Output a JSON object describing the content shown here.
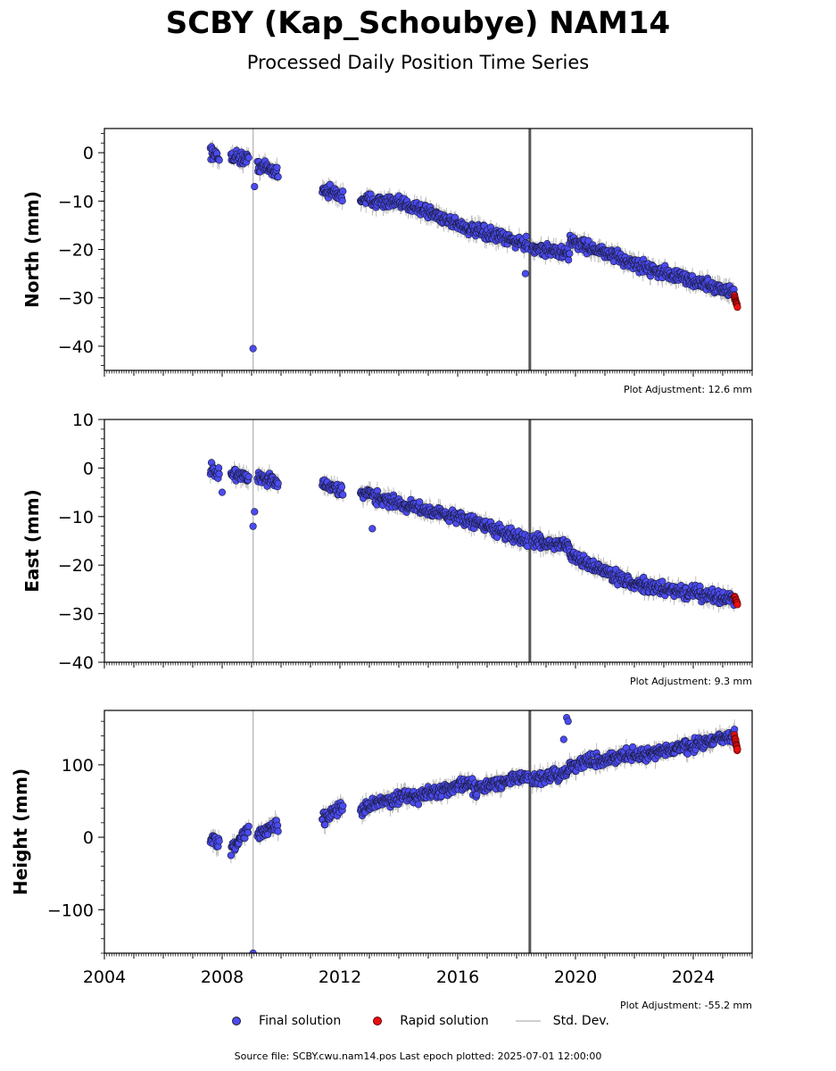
{
  "title": "SCBY (Kap_Schoubye) NAM14",
  "subtitle": "Processed Daily Position Time Series",
  "legend": {
    "final_label": "Final solution",
    "rapid_label": "Rapid solution",
    "std_label": "Std. Dev."
  },
  "source_text": "Source file: SCBY.cwu.nam14.pos  Last epoch plotted: 2025-07-01 12:00:00",
  "colors": {
    "final": "#4b4bf0",
    "rapid": "#e81010",
    "std": "#bdbdbd",
    "offset_line": "#555555"
  },
  "chart_data": [
    {
      "type": "scatter",
      "ylabel": "North (mm)",
      "adjustment_text": "Plot Adjustment: 12.6 mm",
      "ylim": [
        -45,
        5
      ],
      "yticks": [
        0,
        -10,
        -20,
        -30,
        -40
      ],
      "xlim": [
        2004,
        2026
      ],
      "offset_line_x": 2018.45,
      "series": [
        {
          "role": "final",
          "segments": [
            {
              "x": [
                2007.6,
                2007.9
              ],
              "y": [
                0.5,
                -1.5
              ]
            },
            {
              "x": [
                2008.3,
                2008.9
              ],
              "y": [
                -0.5,
                -1.5
              ]
            },
            {
              "x": [
                2009.2,
                2009.9
              ],
              "y": [
                -2.5,
                -4
              ]
            },
            {
              "x": [
                2011.4,
                2012.1
              ],
              "y": [
                -7.5,
                -9
              ]
            },
            {
              "x": [
                2012.7,
                2014.5
              ],
              "y": [
                -9.5,
                -11
              ]
            },
            {
              "x": [
                2014.5,
                2016.5
              ],
              "y": [
                -11,
                -16
              ]
            },
            {
              "x": [
                2016.5,
                2018.4
              ],
              "y": [
                -16,
                -19
              ]
            },
            {
              "x": [
                2018.5,
                2019.8
              ],
              "y": [
                -19.5,
                -21
              ]
            },
            {
              "x": [
                2019.8,
                2022.0
              ],
              "y": [
                -18,
                -23
              ]
            },
            {
              "x": [
                2022.0,
                2025.4
              ],
              "y": [
                -23,
                -29
              ]
            }
          ],
          "outliers": [
            {
              "x": 2009.05,
              "y": -40.5
            },
            {
              "x": 2009.1,
              "y": -7
            },
            {
              "x": 2018.3,
              "y": -25
            }
          ]
        },
        {
          "role": "rapid",
          "x": [
            2025.4,
            2025.5
          ],
          "y": [
            -29.5,
            -32
          ]
        }
      ]
    },
    {
      "type": "scatter",
      "ylabel": "East (mm)",
      "adjustment_text": "Plot Adjustment: 9.3 mm",
      "ylim": [
        -40,
        10
      ],
      "yticks": [
        10,
        0,
        -10,
        -20,
        -30,
        -40
      ],
      "xlim": [
        2004,
        2026
      ],
      "offset_line_x": 2018.45,
      "series": [
        {
          "role": "final",
          "segments": [
            {
              "x": [
                2007.6,
                2007.9
              ],
              "y": [
                -0.5,
                -1.5
              ]
            },
            {
              "x": [
                2008.3,
                2008.9
              ],
              "y": [
                -1,
                -2
              ]
            },
            {
              "x": [
                2009.2,
                2009.9
              ],
              "y": [
                -2,
                -3
              ]
            },
            {
              "x": [
                2011.4,
                2012.1
              ],
              "y": [
                -3.5,
                -5
              ]
            },
            {
              "x": [
                2012.7,
                2014.5
              ],
              "y": [
                -5,
                -8
              ]
            },
            {
              "x": [
                2014.5,
                2016.5
              ],
              "y": [
                -8,
                -11
              ]
            },
            {
              "x": [
                2016.5,
                2018.4
              ],
              "y": [
                -11,
                -15
              ]
            },
            {
              "x": [
                2018.5,
                2019.8
              ],
              "y": [
                -15,
                -16
              ]
            },
            {
              "x": [
                2019.8,
                2022.0
              ],
              "y": [
                -18,
                -24
              ]
            },
            {
              "x": [
                2022.0,
                2025.4
              ],
              "y": [
                -24,
                -27
              ]
            }
          ],
          "outliers": [
            {
              "x": 2009.05,
              "y": -12
            },
            {
              "x": 2009.1,
              "y": -9
            },
            {
              "x": 2008.0,
              "y": -5
            },
            {
              "x": 2013.1,
              "y": -12.5
            }
          ]
        },
        {
          "role": "rapid",
          "x": [
            2025.4,
            2025.5
          ],
          "y": [
            -26.5,
            -28
          ]
        }
      ]
    },
    {
      "type": "scatter",
      "ylabel": "Height (mm)",
      "adjustment_text": "Plot Adjustment: -55.2 mm",
      "ylim": [
        -160,
        175
      ],
      "yticks": [
        100,
        0,
        -100
      ],
      "xlim": [
        2004,
        2026
      ],
      "xticks": [
        2004,
        2008,
        2012,
        2016,
        2020,
        2024
      ],
      "offset_line_x": 2018.45,
      "series": [
        {
          "role": "final",
          "segments": [
            {
              "x": [
                2007.6,
                2007.9
              ],
              "y": [
                0,
                -10
              ]
            },
            {
              "x": [
                2008.3,
                2008.9
              ],
              "y": [
                -20,
                15
              ]
            },
            {
              "x": [
                2009.2,
                2009.9
              ],
              "y": [
                5,
                15
              ]
            },
            {
              "x": [
                2011.4,
                2012.1
              ],
              "y": [
                25,
                45
              ]
            },
            {
              "x": [
                2012.7,
                2014.5
              ],
              "y": [
                40,
                60
              ]
            },
            {
              "x": [
                2014.5,
                2016.5
              ],
              "y": [
                55,
                75
              ]
            },
            {
              "x": [
                2016.5,
                2018.4
              ],
              "y": [
                65,
                85
              ]
            },
            {
              "x": [
                2018.5,
                2019.8
              ],
              "y": [
                80,
                90
              ]
            },
            {
              "x": [
                2019.8,
                2022.0
              ],
              "y": [
                100,
                115
              ]
            },
            {
              "x": [
                2022.0,
                2025.4
              ],
              "y": [
                110,
                140
              ]
            }
          ],
          "outliers": [
            {
              "x": 2009.05,
              "y": -160
            },
            {
              "x": 2019.7,
              "y": 165
            },
            {
              "x": 2019.75,
              "y": 160
            },
            {
              "x": 2019.6,
              "y": 135
            }
          ]
        },
        {
          "role": "rapid",
          "x": [
            2025.4,
            2025.5
          ],
          "y": [
            140,
            120
          ]
        }
      ]
    }
  ]
}
